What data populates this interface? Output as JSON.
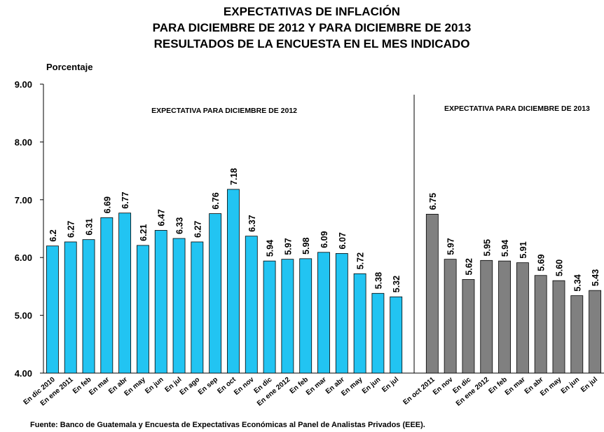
{
  "chart_data": {
    "type": "bar",
    "title": [
      "EXPECTATIVAS DE INFLACIÓN",
      "PARA DICIEMBRE DE 2012 Y PARA DICIEMBRE DE 2013",
      "RESULTADOS DE LA ENCUESTA EN EL MES INDICADO"
    ],
    "y_label": "Porcentaje",
    "source": "Fuente: Banco de Guatemala y Encuesta de Expectativas Económicas al Panel de Analistas Privados (EEE).",
    "categories": [
      "En dic 2010",
      "En ene 2011",
      "En feb",
      "En mar",
      "En abr",
      "En may",
      "En jun",
      "En jul",
      "En ago",
      "En sep",
      "En oct",
      "En nov",
      "En dic",
      "En ene 2012",
      "En feb",
      "En mar",
      "En abr",
      "En may",
      "En jun",
      "En jul",
      null,
      "En oct 2011",
      "En nov",
      "En dic",
      "En ene 2012",
      "En feb",
      "En mar",
      "En abr",
      "En may",
      "En jun",
      "En jul"
    ],
    "series": [
      {
        "name": "EXPECTATIVA PARA DICIEMBRE DE 2012",
        "color": "#22c4f2",
        "values": [
          6.2,
          6.27,
          6.31,
          6.69,
          6.77,
          6.21,
          6.47,
          6.33,
          6.27,
          6.76,
          7.18,
          6.37,
          5.94,
          5.97,
          5.98,
          6.09,
          6.07,
          5.72,
          5.38,
          5.32,
          null,
          null,
          null,
          null,
          null,
          null,
          null,
          null,
          null,
          null,
          null
        ],
        "value_labels": [
          "6.2",
          "6.27",
          "6.31",
          "6.69",
          "6.77",
          "6.21",
          "6.47",
          "6.33",
          "6.27",
          "6.76",
          "7.18",
          "6.37",
          "5.94",
          "5.97",
          "5.98",
          "6.09",
          "6.07",
          "5.72",
          "5.38",
          "5.32",
          null,
          null,
          null,
          null,
          null,
          null,
          null,
          null,
          null,
          null,
          null
        ]
      },
      {
        "name": "EXPECTATIVA PARA DICIEMBRE DE 2013",
        "color": "#808080",
        "values": [
          null,
          null,
          null,
          null,
          null,
          null,
          null,
          null,
          null,
          null,
          null,
          null,
          null,
          null,
          null,
          null,
          null,
          null,
          null,
          null,
          null,
          6.75,
          5.97,
          5.62,
          5.95,
          5.94,
          5.91,
          5.69,
          5.6,
          5.34,
          5.43
        ],
        "value_labels": [
          null,
          null,
          null,
          null,
          null,
          null,
          null,
          null,
          null,
          null,
          null,
          null,
          null,
          null,
          null,
          null,
          null,
          null,
          null,
          null,
          null,
          "6.75",
          "5.97",
          "5.62",
          "5.95",
          "5.94",
          "5.91",
          "5.69",
          "5.60",
          "5.34",
          "5.43"
        ]
      }
    ],
    "ylim": [
      4,
      9
    ],
    "yticks": [
      {
        "value": 4,
        "label": "4.00"
      },
      {
        "value": 5,
        "label": "5.00"
      },
      {
        "value": 6,
        "label": "6.00"
      },
      {
        "value": 7,
        "label": "7.00"
      },
      {
        "value": 8,
        "label": "8.00"
      },
      {
        "value": 9,
        "label": "9.00"
      }
    ],
    "grid": false
  }
}
